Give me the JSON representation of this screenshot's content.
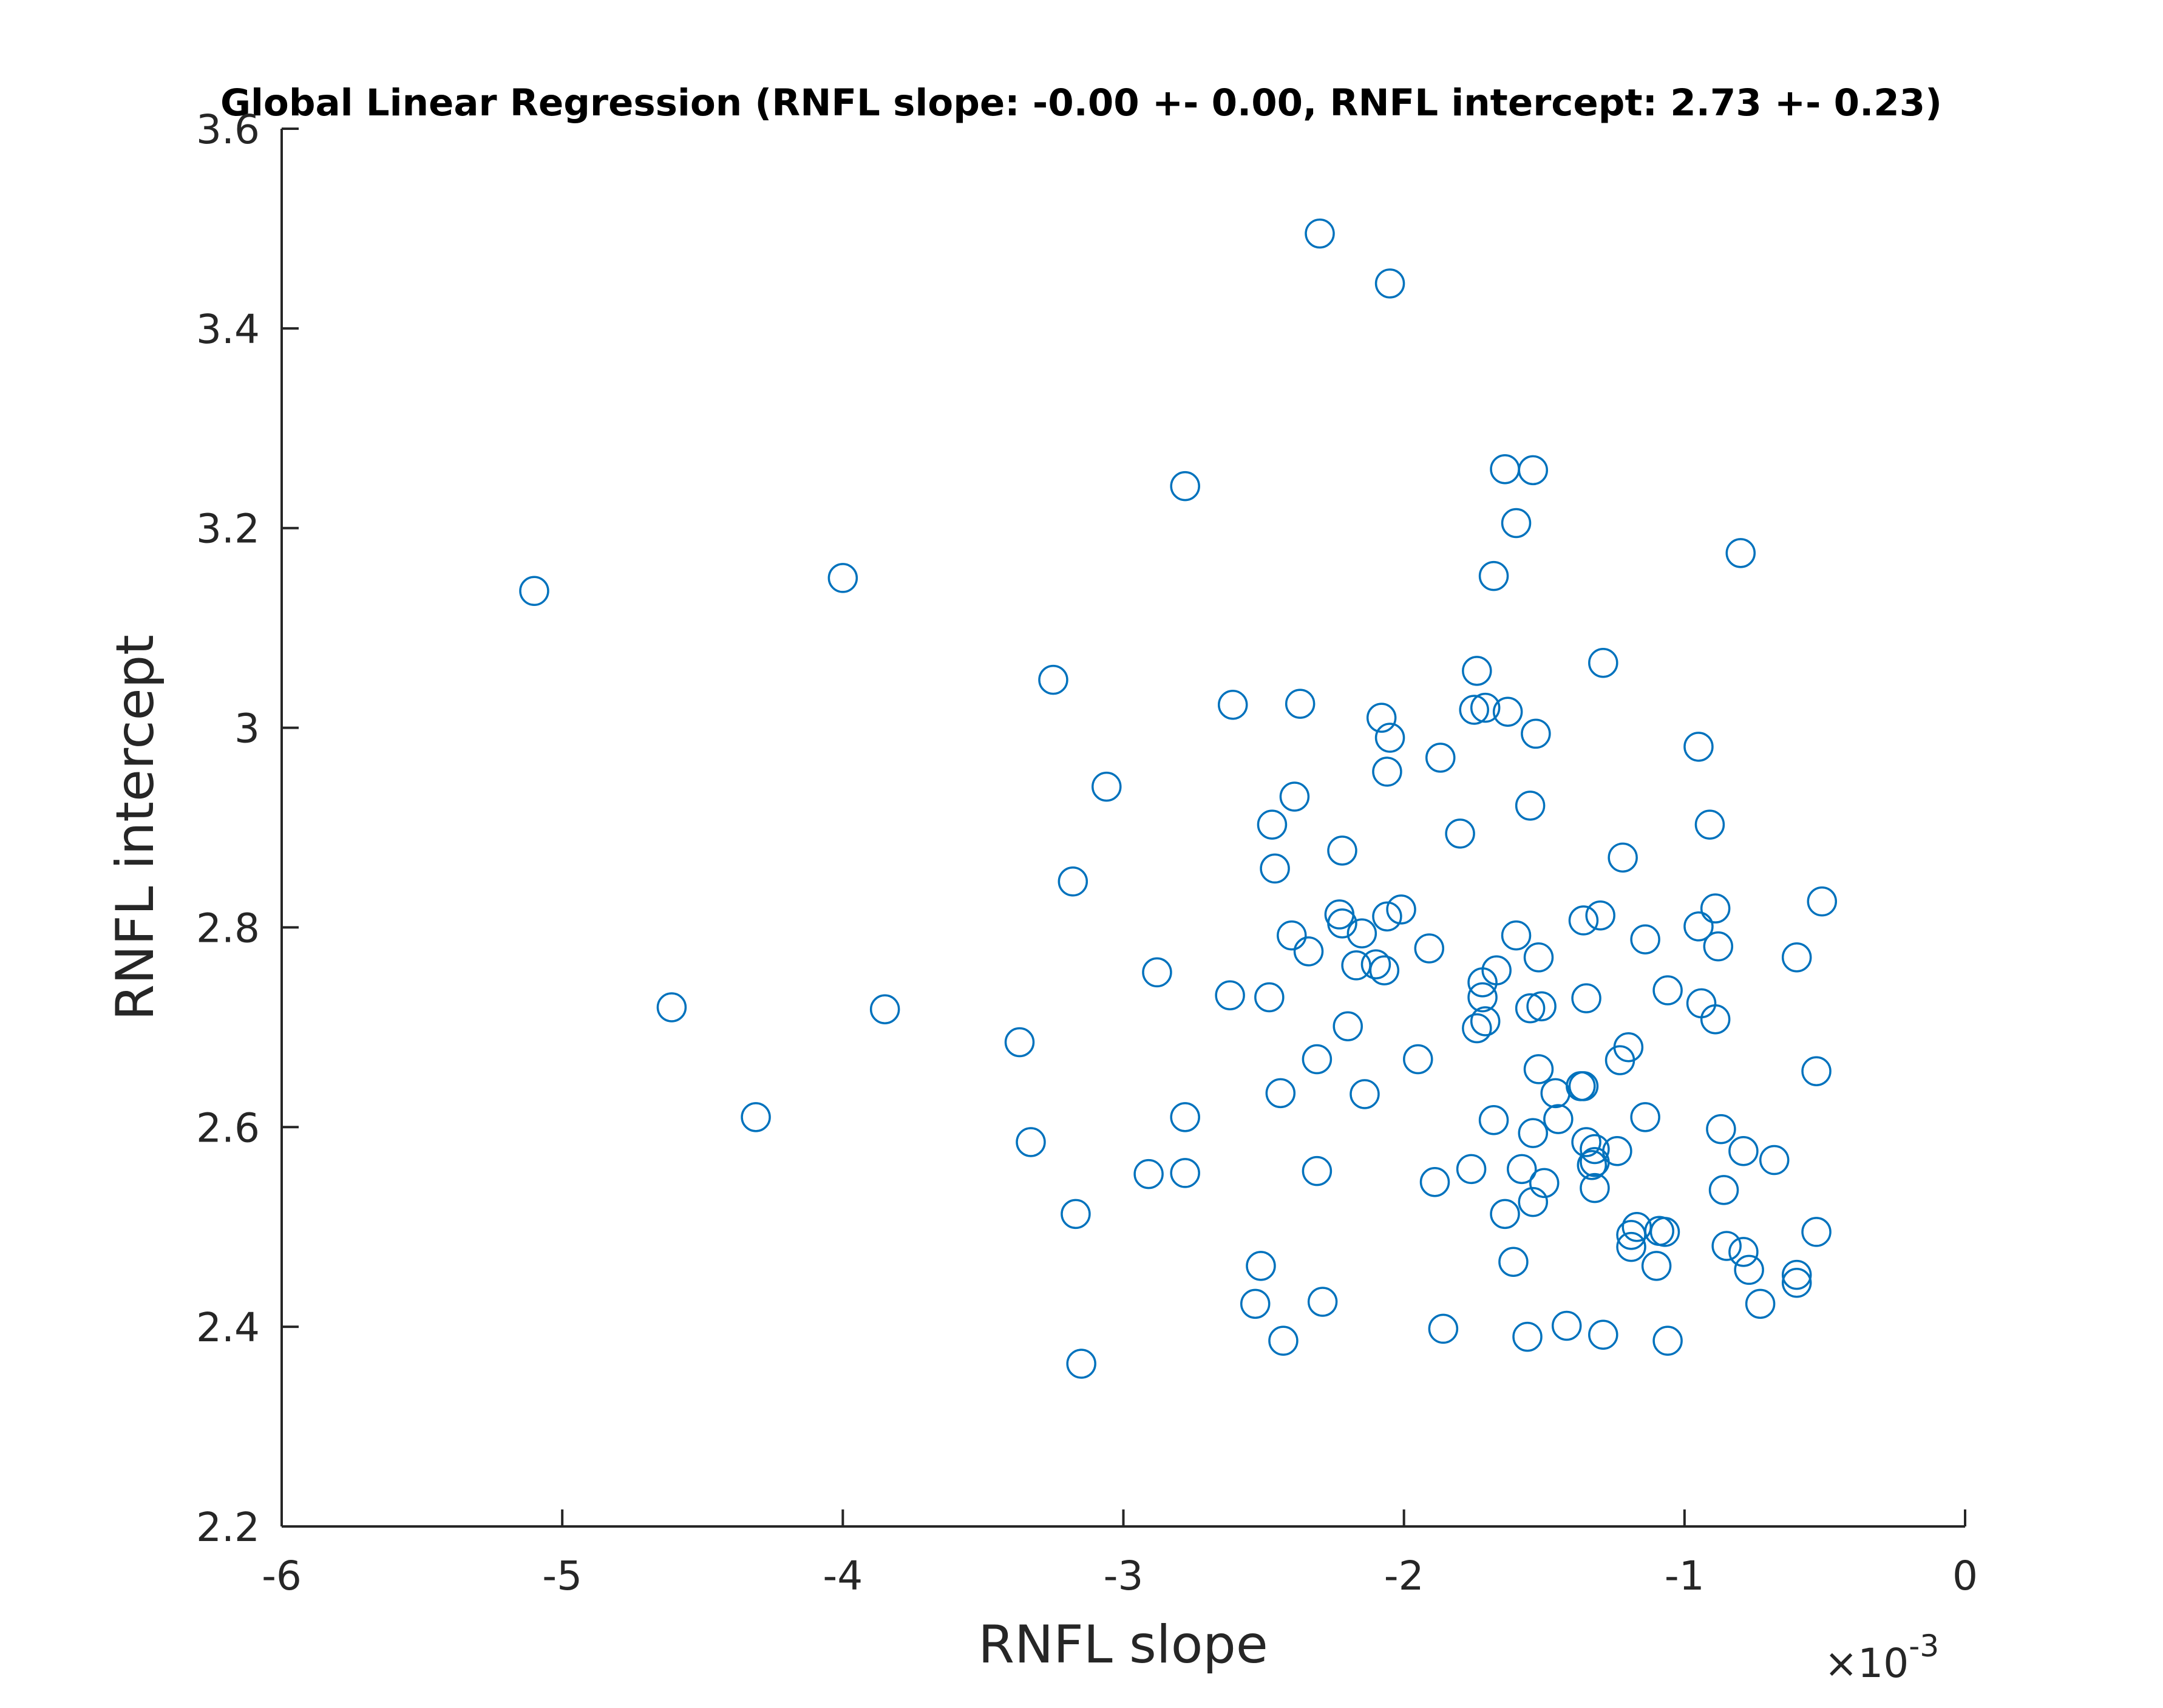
{
  "chart_data": {
    "type": "scatter",
    "title": "Global Linear Regression (RNFL slope: -0.00 +- 0.00, RNFL intercept: 2.73 +- 0.23)",
    "xlabel": "RNFL slope",
    "ylabel": "RNFL intercept",
    "x_exponent_label": "×10",
    "x_exponent_power": "-3",
    "x_scale": 0.001,
    "xlim": [
      -0.006,
      0
    ],
    "ylim": [
      2.2,
      3.6
    ],
    "xticks": [
      -6,
      -5,
      -4,
      -3,
      -2,
      -1,
      0
    ],
    "yticks": [
      2.2,
      2.4,
      2.6,
      2.8,
      3,
      3.2,
      3.4,
      3.6
    ],
    "xtick_labels": [
      "-6",
      "-5",
      "-4",
      "-3",
      "-2",
      "-1",
      "0"
    ],
    "ytick_labels": [
      "2.2",
      "2.4",
      "2.6",
      "2.8",
      "3",
      "3.2",
      "3.4",
      "3.6"
    ],
    "grid": false,
    "legend": "none",
    "marker": "circle-open",
    "marker_color": "#0072BD",
    "series": [
      {
        "points": [
          [
            -0.0051,
            3.137
          ],
          [
            -0.004,
            3.15
          ],
          [
            -0.00461,
            2.72
          ],
          [
            -0.00385,
            2.718
          ],
          [
            -0.00431,
            2.61
          ],
          [
            -0.0023,
            3.495
          ],
          [
            -0.00205,
            3.445
          ],
          [
            -0.00278,
            3.242
          ],
          [
            -0.00325,
            3.048
          ],
          [
            -0.00306,
            2.941
          ],
          [
            -0.00318,
            2.846
          ],
          [
            -0.00337,
            2.685
          ],
          [
            -0.00333,
            2.585
          ],
          [
            -0.00317,
            2.513
          ],
          [
            -0.00315,
            2.363
          ],
          [
            -0.00288,
            2.755
          ],
          [
            -0.00291,
            2.553
          ],
          [
            -0.00278,
            2.61
          ],
          [
            -0.00278,
            2.554
          ],
          [
            -0.00261,
            3.023
          ],
          [
            -0.00237,
            3.024
          ],
          [
            -0.00239,
            2.931
          ],
          [
            -0.00247,
            2.903
          ],
          [
            -0.00246,
            2.859
          ],
          [
            -0.00222,
            2.877
          ],
          [
            -0.00262,
            2.732
          ],
          [
            -0.00248,
            2.73
          ],
          [
            -0.0024,
            2.792
          ],
          [
            -0.00234,
            2.776
          ],
          [
            -0.00223,
            2.813
          ],
          [
            -0.00222,
            2.804
          ],
          [
            -0.00215,
            2.794
          ],
          [
            -0.00217,
            2.762
          ],
          [
            -0.0021,
            2.763
          ],
          [
            -0.00207,
            2.757
          ],
          [
            -0.00206,
            2.811
          ],
          [
            -0.00201,
            2.818
          ],
          [
            -0.0022,
            2.701
          ],
          [
            -0.00231,
            2.668
          ],
          [
            -0.00244,
            2.634
          ],
          [
            -0.00214,
            2.633
          ],
          [
            -0.00231,
            2.556
          ],
          [
            -0.00251,
            2.461
          ],
          [
            -0.00253,
            2.423
          ],
          [
            -0.00229,
            2.425
          ],
          [
            -0.00243,
            2.386
          ],
          [
            -0.00208,
            3.01
          ],
          [
            -0.00205,
            2.99
          ],
          [
            -0.00206,
            2.956
          ],
          [
            -0.00187,
            2.97
          ],
          [
            -0.0018,
            2.894
          ],
          [
            -0.00174,
            3.057
          ],
          [
            -0.00175,
            3.018
          ],
          [
            -0.00171,
            3.02
          ],
          [
            -0.00163,
            3.016
          ],
          [
            -0.00164,
            3.259
          ],
          [
            -0.00154,
            3.258
          ],
          [
            -0.0016,
            3.205
          ],
          [
            -0.00168,
            3.152
          ],
          [
            -0.00129,
            3.065
          ],
          [
            -0.00153,
            2.994
          ],
          [
            -0.00155,
            2.922
          ],
          [
            -0.00191,
            2.779
          ],
          [
            -0.00172,
            2.745
          ],
          [
            -0.00172,
            2.73
          ],
          [
            -0.00167,
            2.757
          ],
          [
            -0.00174,
            2.699
          ],
          [
            -0.00171,
            2.706
          ],
          [
            -0.0016,
            2.792
          ],
          [
            -0.00152,
            2.77
          ],
          [
            -0.00155,
            2.719
          ],
          [
            -0.00151,
            2.721
          ],
          [
            -0.00195,
            2.668
          ],
          [
            -0.00189,
            2.545
          ],
          [
            -0.00176,
            2.558
          ],
          [
            -0.00168,
            2.607
          ],
          [
            -0.00164,
            2.513
          ],
          [
            -0.00161,
            2.465
          ],
          [
            -0.00158,
            2.558
          ],
          [
            -0.00154,
            2.594
          ],
          [
            -0.00154,
            2.525
          ],
          [
            -0.00152,
            2.658
          ],
          [
            -0.0015,
            2.544
          ],
          [
            -0.00146,
            2.634
          ],
          [
            -0.00145,
            2.608
          ],
          [
            -0.00137,
            2.641
          ],
          [
            -0.00136,
            2.641
          ],
          [
            -0.00136,
            2.807
          ],
          [
            -0.0013,
            2.812
          ],
          [
            -0.00135,
            2.729
          ],
          [
            -0.00135,
            2.585
          ],
          [
            -0.00132,
            2.578
          ],
          [
            -0.00133,
            2.562
          ],
          [
            -0.00132,
            2.565
          ],
          [
            -0.00132,
            2.539
          ],
          [
            -0.00124,
            2.576
          ],
          [
            -0.00122,
            2.87
          ],
          [
            -0.00114,
            2.788
          ],
          [
            -0.00106,
            2.737
          ],
          [
            -0.00123,
            2.667
          ],
          [
            -0.0012,
            2.68
          ],
          [
            -0.00114,
            2.61
          ],
          [
            -0.00119,
            2.48
          ],
          [
            -0.00117,
            2.5
          ],
          [
            -0.00119,
            2.492
          ],
          [
            -0.00109,
            2.496
          ],
          [
            -0.00107,
            2.495
          ],
          [
            -0.0011,
            2.461
          ],
          [
            -0.00106,
            2.386
          ],
          [
            -0.00129,
            2.392
          ],
          [
            -0.00142,
            2.401
          ],
          [
            -0.00156,
            2.39
          ],
          [
            -0.00186,
            2.398
          ],
          [
            -0.00095,
            2.981
          ],
          [
            -0.00091,
            2.903
          ],
          [
            -0.0008,
            3.175
          ],
          [
            -0.00095,
            2.801
          ],
          [
            -0.00089,
            2.819
          ],
          [
            -0.00088,
            2.781
          ],
          [
            -0.00094,
            2.724
          ],
          [
            -0.00089,
            2.708
          ],
          [
            -0.0006,
            2.77
          ],
          [
            -0.00051,
            2.826
          ],
          [
            -0.00053,
            2.656
          ],
          [
            -0.00087,
            2.598
          ],
          [
            -0.00086,
            2.537
          ],
          [
            -0.00079,
            2.576
          ],
          [
            -0.00068,
            2.567
          ],
          [
            -0.00085,
            2.481
          ],
          [
            -0.00079,
            2.475
          ],
          [
            -0.00077,
            2.457
          ],
          [
            -0.00073,
            2.423
          ],
          [
            -0.0006,
            2.452
          ],
          [
            -0.0006,
            2.444
          ],
          [
            -0.00053,
            2.495
          ]
        ]
      }
    ]
  }
}
